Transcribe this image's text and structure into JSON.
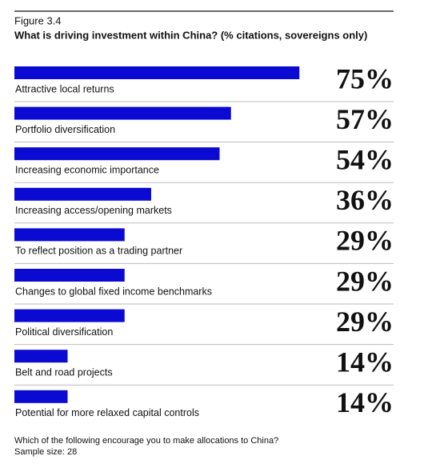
{
  "chart_data": {
    "type": "bar",
    "orientation": "horizontal",
    "figure_label": "Figure 3.4",
    "title": "What is driving investment within China? (% citations, sovereigns only)",
    "categories": [
      "Attractive local returns",
      "Portfolio diversification",
      "Increasing economic  importance",
      "Increasing access/opening markets",
      "To reflect position  as a trading partner",
      "Changes to global fixed income benchmarks",
      "Political diversification",
      "Belt and road projects",
      "Potential for more relaxed capital controls"
    ],
    "values": [
      75,
      57,
      54,
      36,
      29,
      29,
      29,
      14,
      14
    ],
    "value_labels": [
      "75%",
      "57%",
      "54%",
      "36%",
      "29%",
      "29%",
      "29%",
      "14%",
      "14%"
    ],
    "color": "#0a0ad2",
    "xlim": [
      0,
      100
    ],
    "notes": [
      "Which of the following encourage you to make allocations to China?",
      "Sample size: 28"
    ]
  }
}
